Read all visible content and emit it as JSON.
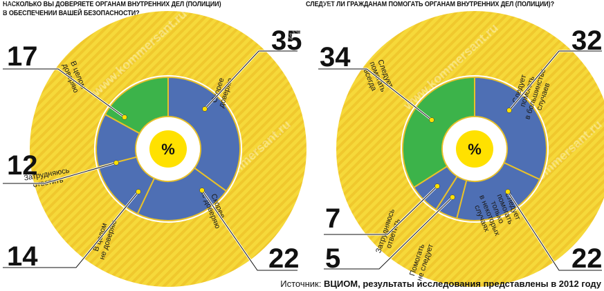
{
  "colors": {
    "outer_ring": "#f6d93a",
    "stripe": "#f0c82d",
    "blue": "#4e6fb4",
    "green": "#3cb34a",
    "center": "#ffe100",
    "line": "#111111"
  },
  "center_label": "%",
  "watermark": "www.kommersant.ru",
  "source_prefix": "Источник: ",
  "source_text": "ВЦИОМ, результаты исследования представлены в 2012 году",
  "chart_data": [
    {
      "type": "pie",
      "title_line1": "НАСКОЛЬКО ВЫ ДОВЕРЯЕТЕ ОРГАНАМ ВНУТРЕННИХ ДЕЛ (ПОЛИЦИИ)",
      "title_line2": "В ОБЕСПЕЧЕНИИ ВАШЕЙ БЕЗОПАСНОСТИ?",
      "slices": [
        {
          "label": "Скорее доверяю",
          "value": 35,
          "color": "blue"
        },
        {
          "label": "Скорее не доверяю",
          "value": 22,
          "color": "blue"
        },
        {
          "label": "В целом не доверяю",
          "value": 14,
          "color": "blue"
        },
        {
          "label": "Затрудняюсь ответить",
          "value": 12,
          "color": "blue"
        },
        {
          "label": "В целом доверяю",
          "value": 17,
          "color": "green"
        }
      ]
    },
    {
      "type": "pie",
      "title_line1": "СЛЕДУЕТ ЛИ ГРАЖДАНАМ ПОМОГАТЬ ОРГАНАМ ВНУТРЕННИХ ДЕЛ (ПОЛИЦИИ)?",
      "title_line2": "",
      "slices": [
        {
          "label": "Следует помогать в большинстве случаев",
          "value": 32,
          "color": "blue"
        },
        {
          "label": "Следует помогать только в некоторых случаях",
          "value": 22,
          "color": "blue"
        },
        {
          "label": "Помогать не следует",
          "value": 5,
          "color": "blue"
        },
        {
          "label": "Затрудняюсь ответить",
          "value": 7,
          "color": "blue"
        },
        {
          "label": "Следует помогать всегда",
          "value": 34,
          "color": "green"
        }
      ]
    }
  ]
}
